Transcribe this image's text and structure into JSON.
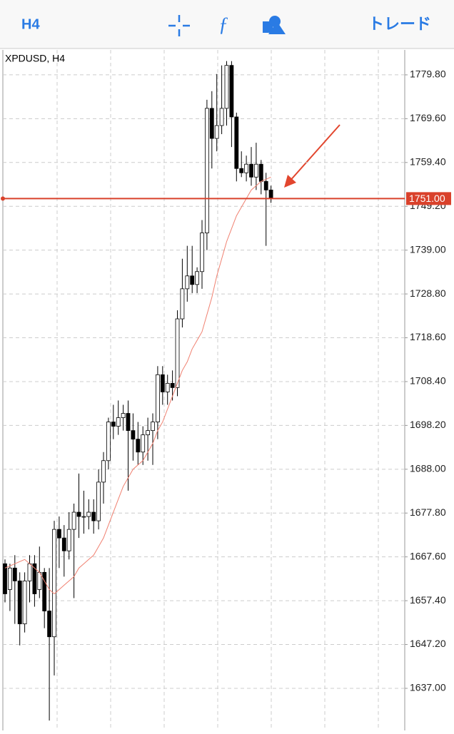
{
  "toolbar": {
    "timeframe": "H4",
    "trade": "トレード"
  },
  "chart_data": {
    "type": "candlestick",
    "title": "XPDUSD, H4",
    "ylim": [
      1627.2,
      1785.6
    ],
    "yticks": [
      {
        "value": 1779.8,
        "label": "1779.80"
      },
      {
        "value": 1769.6,
        "label": "1769.60"
      },
      {
        "value": 1759.4,
        "label": "1759.40"
      },
      {
        "value": 1749.2,
        "label": "1749.20"
      },
      {
        "value": 1739,
        "label": "1739.00"
      },
      {
        "value": 1728.8,
        "label": "1728.80"
      },
      {
        "value": 1718.6,
        "label": "1718.60"
      },
      {
        "value": 1708.4,
        "label": "1708.40"
      },
      {
        "value": 1698.2,
        "label": "1698.20"
      },
      {
        "value": 1688,
        "label": "1688.00"
      },
      {
        "value": 1677.8,
        "label": "1677.80"
      },
      {
        "value": 1667.6,
        "label": "1667.60"
      },
      {
        "value": 1657.4,
        "label": "1657.40"
      },
      {
        "value": 1647.2,
        "label": "1647.20"
      },
      {
        "value": 1637,
        "label": "1637.00"
      }
    ],
    "grid": true,
    "current_price": {
      "value": 1751,
      "label": "1751.00",
      "color": "#d9412b"
    },
    "up_color": "#ffffff",
    "down_color": "#000000",
    "open": [
      1666,
      1660,
      1665,
      1662,
      1652,
      1662,
      1666,
      1660,
      1664,
      1655,
      1649,
      1674,
      1672,
      1669,
      1674,
      1678,
      1677,
      1677,
      1678,
      1676,
      1685,
      1690,
      1699,
      1698,
      1700,
      1701,
      1697,
      1695,
      1692,
      1696,
      1697,
      1699,
      1710,
      1706,
      1708,
      1707,
      1723,
      1730,
      1733,
      1731,
      1734,
      1743,
      1772,
      1765,
      1768,
      1772,
      1782,
      1770,
      1758,
      1757,
      1759,
      1756,
      1759,
      1755,
      1753
    ],
    "high": [
      1667,
      1666,
      1668,
      1664,
      1664,
      1668,
      1668,
      1670,
      1665,
      1665,
      1676,
      1677,
      1675,
      1678,
      1680,
      1687,
      1683,
      1681,
      1681,
      1688,
      1692,
      1700,
      1703,
      1704,
      1703,
      1704,
      1701,
      1699,
      1698,
      1700,
      1701,
      1712,
      1712,
      1710,
      1711,
      1725,
      1737,
      1740,
      1740,
      1735,
      1746,
      1774,
      1776,
      1780,
      1782,
      1783,
      1783,
      1771,
      1762,
      1761,
      1763,
      1764,
      1760,
      1757,
      1754
    ],
    "low": [
      1657,
      1655,
      1652,
      1647,
      1650,
      1657,
      1656,
      1658,
      1651,
      1629.5,
      1640,
      1665,
      1663,
      1667,
      1658,
      1672,
      1673,
      1674,
      1673,
      1674,
      1680,
      1688,
      1695,
      1696,
      1697,
      1683,
      1690,
      1689,
      1689,
      1690,
      1689,
      1695,
      1703,
      1703,
      1704,
      1705,
      1721,
      1727,
      1729,
      1729,
      1730,
      1739,
      1758,
      1762,
      1766,
      1768,
      1763,
      1755,
      1756,
      1755,
      1754,
      1753,
      1752,
      1740,
      1750
    ],
    "close": [
      1659,
      1665,
      1662,
      1652,
      1662,
      1666,
      1659,
      1664,
      1655,
      1649,
      1674,
      1672,
      1669,
      1674,
      1678,
      1677,
      1677,
      1678,
      1676,
      1685,
      1690,
      1699,
      1698,
      1700,
      1701,
      1697,
      1695,
      1692,
      1696,
      1697,
      1699,
      1710,
      1706,
      1708,
      1707,
      1723,
      1730,
      1733,
      1731,
      1734,
      1743,
      1772,
      1765,
      1768,
      1772,
      1782,
      1770,
      1758,
      1757,
      1759,
      1756,
      1759,
      1755,
      1753,
      1751
    ],
    "moving_average": {
      "color": "#f08070",
      "values": [
        1665,
        1665.5,
        1666,
        1666.5,
        1667,
        1666,
        1665,
        1664,
        1662,
        1660,
        1659,
        1660,
        1661,
        1662,
        1663,
        1665,
        1666,
        1667,
        1668,
        1670,
        1672,
        1675,
        1678,
        1681,
        1684,
        1686,
        1688,
        1689,
        1690,
        1692,
        1694,
        1697,
        1699,
        1702,
        1705,
        1708,
        1711,
        1713,
        1716,
        1718,
        1720,
        1724,
        1728,
        1733,
        1737,
        1741,
        1744,
        1747,
        1749,
        1751,
        1753,
        1754,
        1755,
        1755.5,
        1756
      ]
    }
  }
}
